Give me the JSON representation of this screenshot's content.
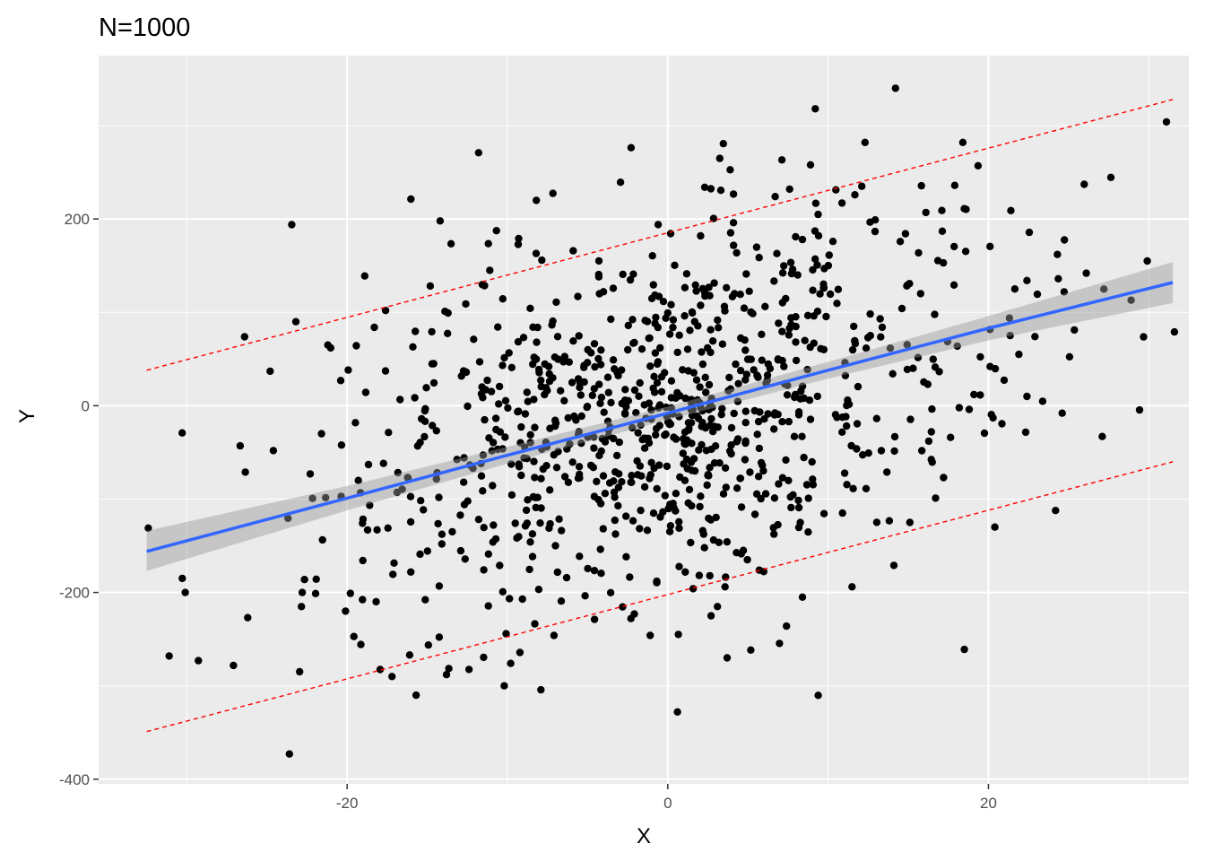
{
  "chart_data": {
    "type": "scatter",
    "title": "N=1000",
    "xlabel": "X",
    "ylabel": "Y",
    "xlim": [
      -35.5,
      32.5
    ],
    "ylim": [
      -405,
      375
    ],
    "x_ticks": [
      -20,
      0,
      20
    ],
    "y_ticks": [
      -400,
      -200,
      0,
      200
    ],
    "x_tick_labels": [
      "-20",
      "0",
      "20"
    ],
    "y_tick_labels": [
      "-400",
      "-200",
      "0",
      "200"
    ],
    "grid": true,
    "panel_background": "#ebebeb",
    "point_color": "#000000",
    "points_shown": 1000,
    "fit": {
      "type": "linear",
      "color": "#3366ff",
      "band_color": "#999999",
      "x": [
        -32.5,
        -20,
        -10,
        0,
        10,
        20,
        31.5
      ],
      "y": [
        -156,
        -99,
        -53,
        -8,
        38,
        83,
        132
      ],
      "lower": [
        -177,
        -112,
        -62,
        -15,
        29,
        70,
        110
      ],
      "upper": [
        -134,
        -86,
        -44,
        -1,
        47,
        96,
        154
      ]
    },
    "prediction_bounds": {
      "color": "#ff0000",
      "style": "dashed",
      "x": [
        -32.5,
        31.5
      ],
      "upper": [
        38,
        328
      ],
      "lower": [
        -349,
        -60
      ]
    },
    "annotated_points": [
      {
        "x": 14.2,
        "y": 340
      },
      {
        "x": 9.2,
        "y": 318
      },
      {
        "x": 31.1,
        "y": 304
      },
      {
        "x": 12.3,
        "y": 282
      },
      {
        "x": 18.4,
        "y": 282
      },
      {
        "x": -11.8,
        "y": 271
      },
      {
        "x": 8.9,
        "y": 258
      },
      {
        "x": 2.3,
        "y": 234
      },
      {
        "x": -8.2,
        "y": 220
      },
      {
        "x": 17.9,
        "y": 236
      },
      {
        "x": 21.4,
        "y": 209
      },
      {
        "x": -14.2,
        "y": 198
      },
      {
        "x": -0.6,
        "y": 194
      },
      {
        "x": 28.9,
        "y": 113
      },
      {
        "x": 27.2,
        "y": 125
      },
      {
        "x": 24.3,
        "y": 162
      },
      {
        "x": 31.6,
        "y": 79
      },
      {
        "x": 26.1,
        "y": 142
      },
      {
        "x": -32.4,
        "y": -131
      },
      {
        "x": -31.1,
        "y": -268
      },
      {
        "x": -30.1,
        "y": -200
      },
      {
        "x": -26.2,
        "y": -227
      },
      {
        "x": -23.6,
        "y": -373
      },
      {
        "x": -22.8,
        "y": -200
      },
      {
        "x": -20.1,
        "y": -220
      },
      {
        "x": -19.8,
        "y": -201
      },
      {
        "x": -15.7,
        "y": -310
      },
      {
        "x": -10.2,
        "y": -300
      },
      {
        "x": 0.6,
        "y": -328
      },
      {
        "x": 3.7,
        "y": -270
      },
      {
        "x": 18.5,
        "y": -261
      },
      {
        "x": 14.1,
        "y": -171
      },
      {
        "x": 20.4,
        "y": -130
      },
      {
        "x": 27.1,
        "y": -33
      },
      {
        "x": 24.6,
        "y": -8
      },
      {
        "x": 22.9,
        "y": 74
      },
      {
        "x": -24.8,
        "y": 37
      },
      {
        "x": -23.2,
        "y": 90
      },
      {
        "x": -21.2,
        "y": 65
      },
      {
        "x": -18.9,
        "y": 139
      },
      {
        "x": -12.6,
        "y": 109
      },
      {
        "x": -11.1,
        "y": 145
      },
      {
        "x": -13.9,
        "y": 101
      },
      {
        "x": -9.3,
        "y": 179
      },
      {
        "x": -5.9,
        "y": 166
      },
      {
        "x": 4.1,
        "y": 196
      },
      {
        "x": 6.7,
        "y": 224
      },
      {
        "x": 7.6,
        "y": 232
      },
      {
        "x": 12.1,
        "y": 235
      },
      {
        "x": 16.1,
        "y": 207
      },
      {
        "x": 10.3,
        "y": 176
      },
      {
        "x": 21.9,
        "y": 55
      },
      {
        "x": 22.4,
        "y": 10
      },
      {
        "x": 20.1,
        "y": 42
      },
      {
        "x": 18.8,
        "y": -4
      },
      {
        "x": 17.2,
        "y": -77
      },
      {
        "x": 16.7,
        "y": -99
      },
      {
        "x": 15.1,
        "y": -125
      },
      {
        "x": 10.9,
        "y": -115
      },
      {
        "x": 8.4,
        "y": -205
      },
      {
        "x": 7.4,
        "y": -236
      },
      {
        "x": 2.7,
        "y": -225
      },
      {
        "x": -1.1,
        "y": -246
      },
      {
        "x": -2.3,
        "y": -228
      },
      {
        "x": -7.1,
        "y": -246
      },
      {
        "x": -9.8,
        "y": -276
      },
      {
        "x": -13.8,
        "y": -288
      },
      {
        "x": -16.1,
        "y": -267
      },
      {
        "x": -17.2,
        "y": -290
      },
      {
        "x": -19.3,
        "y": -80
      },
      {
        "x": -21.6,
        "y": -30
      },
      {
        "x": -22.3,
        "y": -73
      },
      {
        "x": -24.6,
        "y": -48
      },
      {
        "x": -20.4,
        "y": 27
      },
      {
        "x": -17.6,
        "y": 102
      },
      {
        "x": -15.9,
        "y": 63
      },
      {
        "x": -14.6,
        "y": 45
      }
    ]
  }
}
